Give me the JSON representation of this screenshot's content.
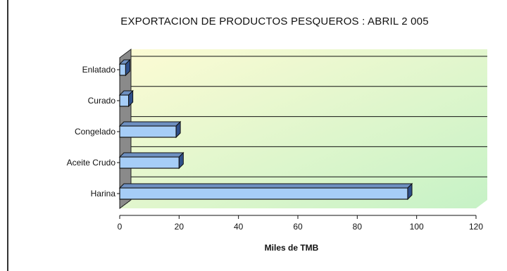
{
  "chart_data": {
    "type": "bar",
    "orientation": "horizontal",
    "title": "EXPORTACION DE PRODUCTOS PESQUEROS : ABRIL 2 005",
    "xlabel": "Miles de TMB",
    "ylabel": "",
    "categories": [
      "Enlatado",
      "Curado",
      "Congelado",
      "Aceite Crudo",
      "Harina"
    ],
    "values": [
      2,
      3,
      19,
      20,
      97
    ],
    "xlim": [
      0,
      120
    ],
    "xticks": [
      0,
      20,
      40,
      60,
      80,
      100,
      120
    ],
    "grid": true,
    "three_d": true,
    "colors": {
      "bar_front": "#a6cdf7",
      "bar_top": "#6d8fc0",
      "bar_side": "#2f4f8a",
      "wall": "#8a8a8a",
      "background_from": "#fdfbd4",
      "background_to": "#c6f2c6"
    }
  }
}
